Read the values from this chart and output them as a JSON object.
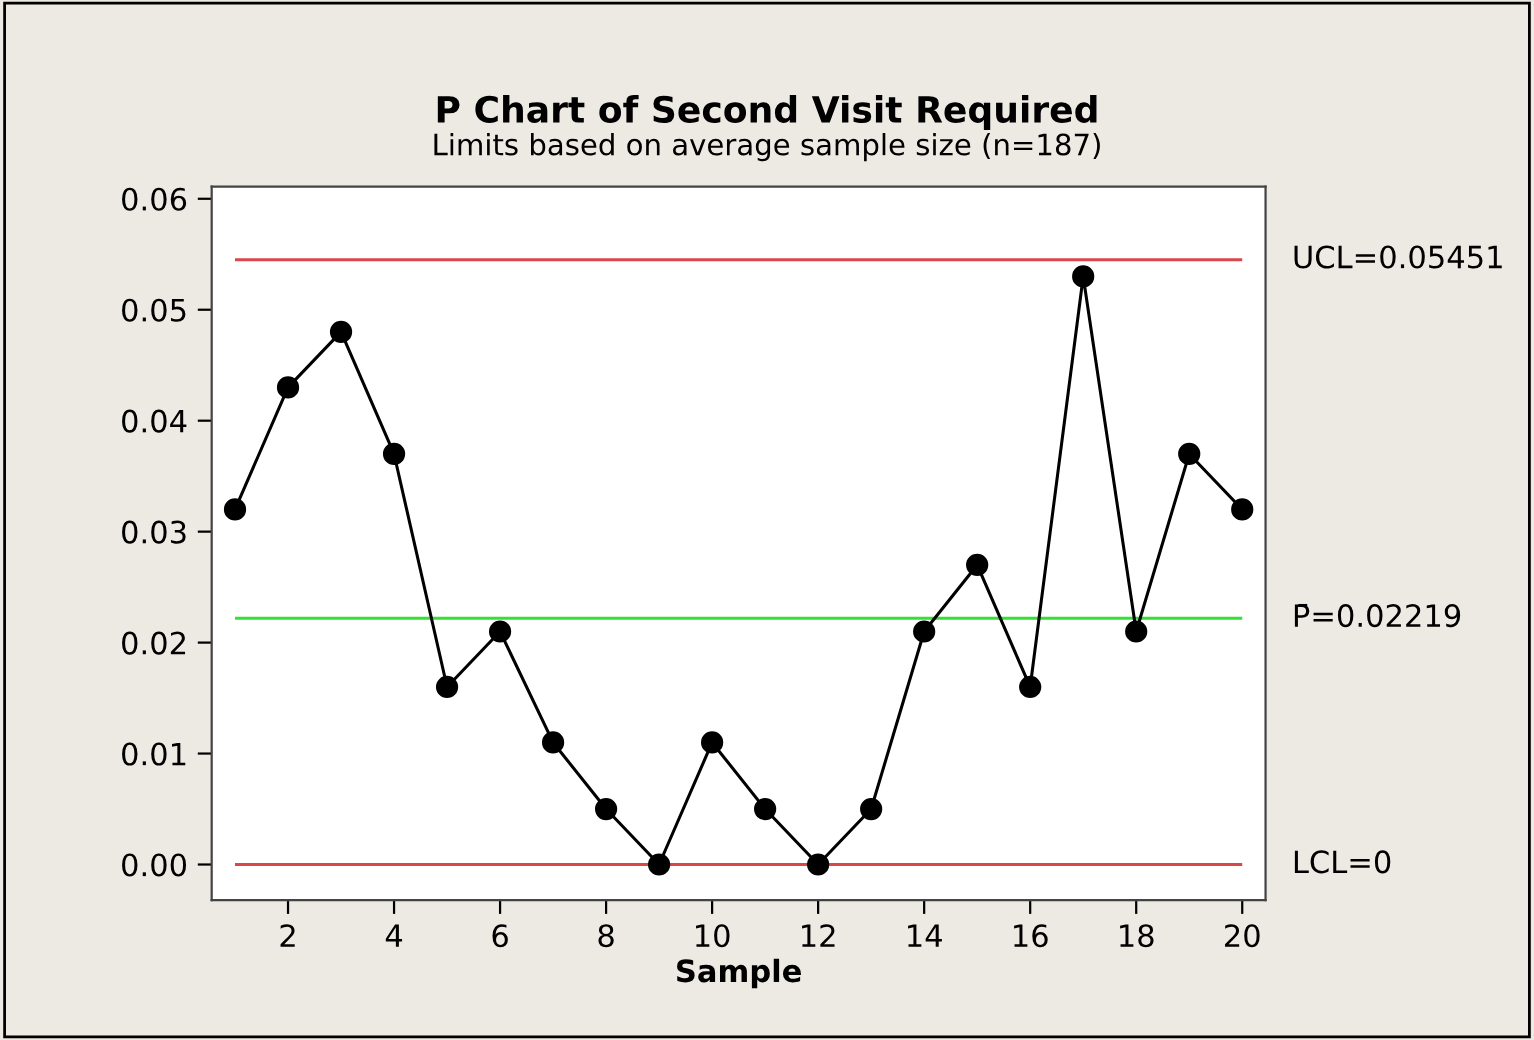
{
  "chart_data": {
    "type": "line",
    "title": "P Chart of Second Visit Required",
    "subtitle": "Limits based on average sample size (n=187)",
    "xlabel": "Sample",
    "x": [
      1,
      2,
      3,
      4,
      5,
      6,
      7,
      8,
      9,
      10,
      11,
      12,
      13,
      14,
      15,
      16,
      17,
      18,
      19,
      20
    ],
    "series": [
      {
        "color": "#000000",
        "values": [
          0.032,
          0.043,
          0.048,
          0.037,
          0.016,
          0.021,
          0.011,
          0.005,
          0,
          0.011,
          0.005,
          0,
          0.005,
          0.021,
          0.027,
          0.016,
          0.053,
          0.021,
          0.037,
          0.032
        ]
      }
    ],
    "xlim": [
      0.56,
      20.44
    ],
    "xticks": [
      2,
      4,
      6,
      8,
      10,
      12,
      14,
      16,
      18,
      20
    ],
    "ylim": [
      -0.0032,
      0.0611
    ],
    "yticks": [
      {
        "value": 0,
        "label": "0.00"
      },
      {
        "value": 0.01,
        "label": "0.01"
      },
      {
        "value": 0.02,
        "label": "0.02"
      },
      {
        "value": 0.03,
        "label": "0.03"
      },
      {
        "value": 0.04,
        "label": "0.04"
      },
      {
        "value": 0.05,
        "label": "0.05"
      },
      {
        "value": 0.06,
        "label": "0.06"
      }
    ],
    "ref_lines": [
      {
        "axis": "y",
        "value": 0.05451,
        "label": "UCL=0.05451",
        "color": "#d9474a"
      },
      {
        "axis": "y",
        "value": 0.02219,
        "label": "P̄=0.02219",
        "color": "#33e033"
      },
      {
        "axis": "y",
        "value": 0,
        "label": "LCL=0",
        "color": "#d9474a"
      }
    ],
    "grid": false,
    "legend": false,
    "marker": "circle",
    "line_style": "solid"
  }
}
